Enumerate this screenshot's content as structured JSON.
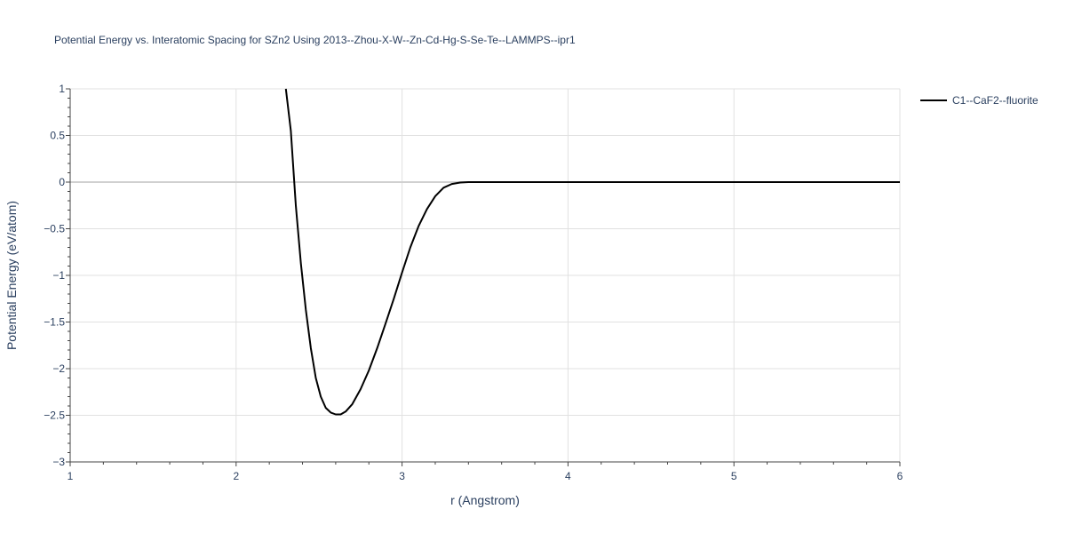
{
  "chart_data": {
    "type": "line",
    "title": "Potential Energy vs. Interatomic Spacing for SZn2 Using 2013--Zhou-X-W--Zn-Cd-Hg-S-Se-Te--LAMMPS--ipr1",
    "xlabel": "r (Angstrom)",
    "ylabel": "Potential Energy (eV/atom)",
    "xlim": [
      1,
      6
    ],
    "ylim": [
      -3,
      1
    ],
    "x_ticks": [
      1,
      2,
      3,
      4,
      5,
      6
    ],
    "x_tick_labels": [
      "1",
      "2",
      "3",
      "4",
      "5",
      "6"
    ],
    "y_ticks": [
      1,
      0.5,
      0,
      -0.5,
      -1,
      -1.5,
      -2,
      -2.5,
      -3
    ],
    "y_tick_labels": [
      "1",
      "0.5",
      "0",
      "−0.5",
      "−1",
      "−1.5",
      "−2",
      "−2.5",
      "−3"
    ],
    "grid": true,
    "legend_position": "top-right",
    "series": [
      {
        "name": "C1--CaF2--fluorite",
        "color": "#000000",
        "x": [
          2.3,
          2.33,
          2.36,
          2.39,
          2.42,
          2.45,
          2.48,
          2.51,
          2.54,
          2.57,
          2.6,
          2.63,
          2.66,
          2.7,
          2.75,
          2.8,
          2.85,
          2.9,
          2.95,
          3.0,
          3.05,
          3.1,
          3.15,
          3.2,
          3.25,
          3.3,
          3.35,
          3.4,
          3.45,
          3.5,
          3.6,
          3.8,
          4.0,
          4.5,
          5.0,
          5.5,
          6.0
        ],
        "y": [
          1.0,
          0.55,
          -0.25,
          -0.87,
          -1.37,
          -1.78,
          -2.1,
          -2.3,
          -2.42,
          -2.47,
          -2.49,
          -2.49,
          -2.46,
          -2.38,
          -2.22,
          -2.02,
          -1.78,
          -1.52,
          -1.25,
          -0.97,
          -0.7,
          -0.47,
          -0.29,
          -0.15,
          -0.06,
          -0.02,
          -0.005,
          0.0,
          0.0,
          0.0,
          0.0,
          0.0,
          0.0,
          0.0,
          0.0,
          0.0,
          0.0
        ]
      }
    ]
  }
}
